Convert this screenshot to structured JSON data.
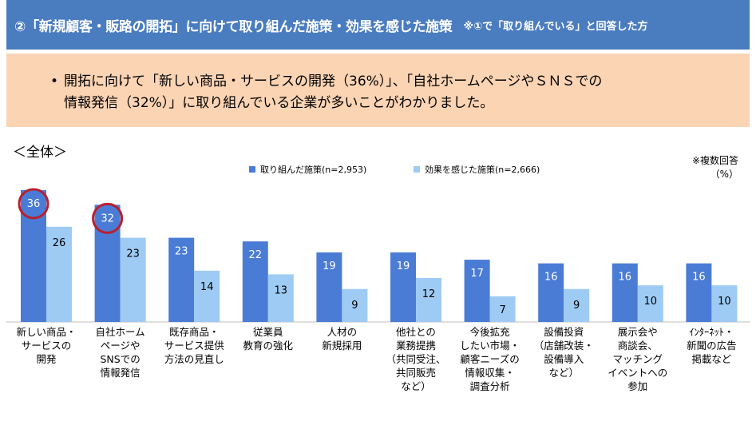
{
  "header": {
    "title": "②「新規顧客・販路の開拓」に向けて取り組んだ施策・効果を感じた施策",
    "note": "※①で「取り組んでいる」と回答した方"
  },
  "summary": {
    "bullet": "•",
    "line1": "開拓に向けて「新しい商品・サービスの開発（36%）」、「自社ホームページやＳＮＳでの",
    "line2": "情報発信（32%）」に取り組んでいる企業が多いことがわかりました。"
  },
  "section_label": "＜全体＞",
  "notes": {
    "multi_answer": "※複数回答",
    "unit": "（%）"
  },
  "colors": {
    "series1": "#4a7cd6",
    "series2": "#9ecbf4",
    "highlight_ring": "#b8202f",
    "header_bg": "#4a7cc0",
    "summary_bg": "#fbd4b4"
  },
  "chart_data": {
    "type": "bar",
    "categories": [
      "新しい商品・サービスの開発",
      "自社ホームページやSNSでの情報発信",
      "既存商品・サービス提供方法の見直し",
      "従業員教育の強化",
      "人材の新規採用",
      "他社との業務提携（共同受注、共同販売など）",
      "今後拡充したい市場・顧客ニーズの情報収集・調査分析",
      "設備投資（店舗改装・設備導入など）",
      "展示会や商談会、マッチングイベントへの参加",
      "ｲﾝﾀｰﾈｯﾄ・新聞の広告掲載など"
    ],
    "category_lines": [
      [
        "新しい商品・",
        "サービスの",
        "開発"
      ],
      [
        "自社ホーム",
        "ページや",
        "SNSでの",
        "情報発信"
      ],
      [
        "既存商品・",
        "サービス提供",
        "方法の見直し"
      ],
      [
        "従業員",
        "教育の強化"
      ],
      [
        "人材の",
        "新規採用"
      ],
      [
        "他社との",
        "業務提携",
        "（共同受注、",
        "共同販売",
        "など）"
      ],
      [
        "今後拡充",
        "したい市場・",
        "顧客ニーズの",
        "情報収集・",
        "調査分析"
      ],
      [
        "設備投資",
        "（店舗改装・",
        "設備導入",
        "など）"
      ],
      [
        "展示会や",
        "商談会、",
        "マッチング",
        "イベントへの",
        "参加"
      ],
      [
        "ｲﾝﾀｰﾈｯﾄ・",
        "新聞の広告",
        "掲載など"
      ]
    ],
    "series": [
      {
        "name": "取り組んだ施策(n=2,953)",
        "values": [
          36,
          32,
          23,
          22,
          19,
          19,
          17,
          16,
          16,
          16
        ]
      },
      {
        "name": "効果を感じた施策(n=2,666)",
        "values": [
          26,
          23,
          14,
          13,
          9,
          12,
          7,
          9,
          10,
          10
        ]
      }
    ],
    "highlighted": [
      0,
      1
    ],
    "ylim": [
      0,
      36
    ],
    "grid": false,
    "legend_position": "top-center"
  }
}
